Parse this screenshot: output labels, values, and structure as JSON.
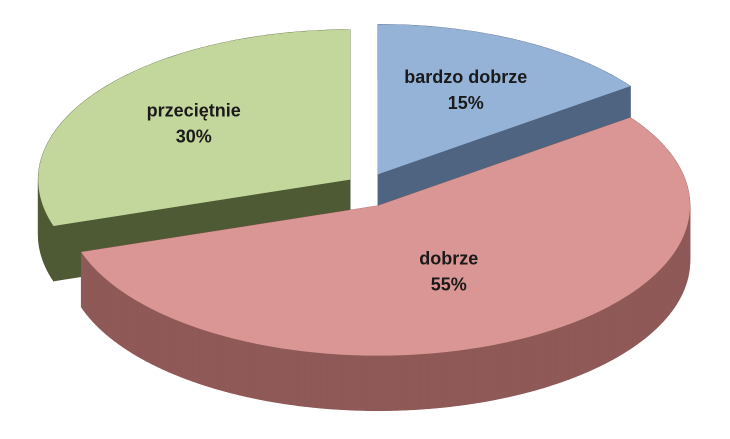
{
  "chart_data": {
    "type": "pie",
    "categories": [
      "bardzo dobrze",
      "dobrze",
      "przeciętnie"
    ],
    "values": [
      15,
      55,
      30
    ],
    "value_labels": [
      "15%",
      "55%",
      "30%"
    ],
    "colors": [
      "#95b3d7",
      "#d99694",
      "#c3d69b"
    ],
    "side_colors": [
      "#4f6480",
      "#8e5957",
      "#4e5a34"
    ]
  }
}
